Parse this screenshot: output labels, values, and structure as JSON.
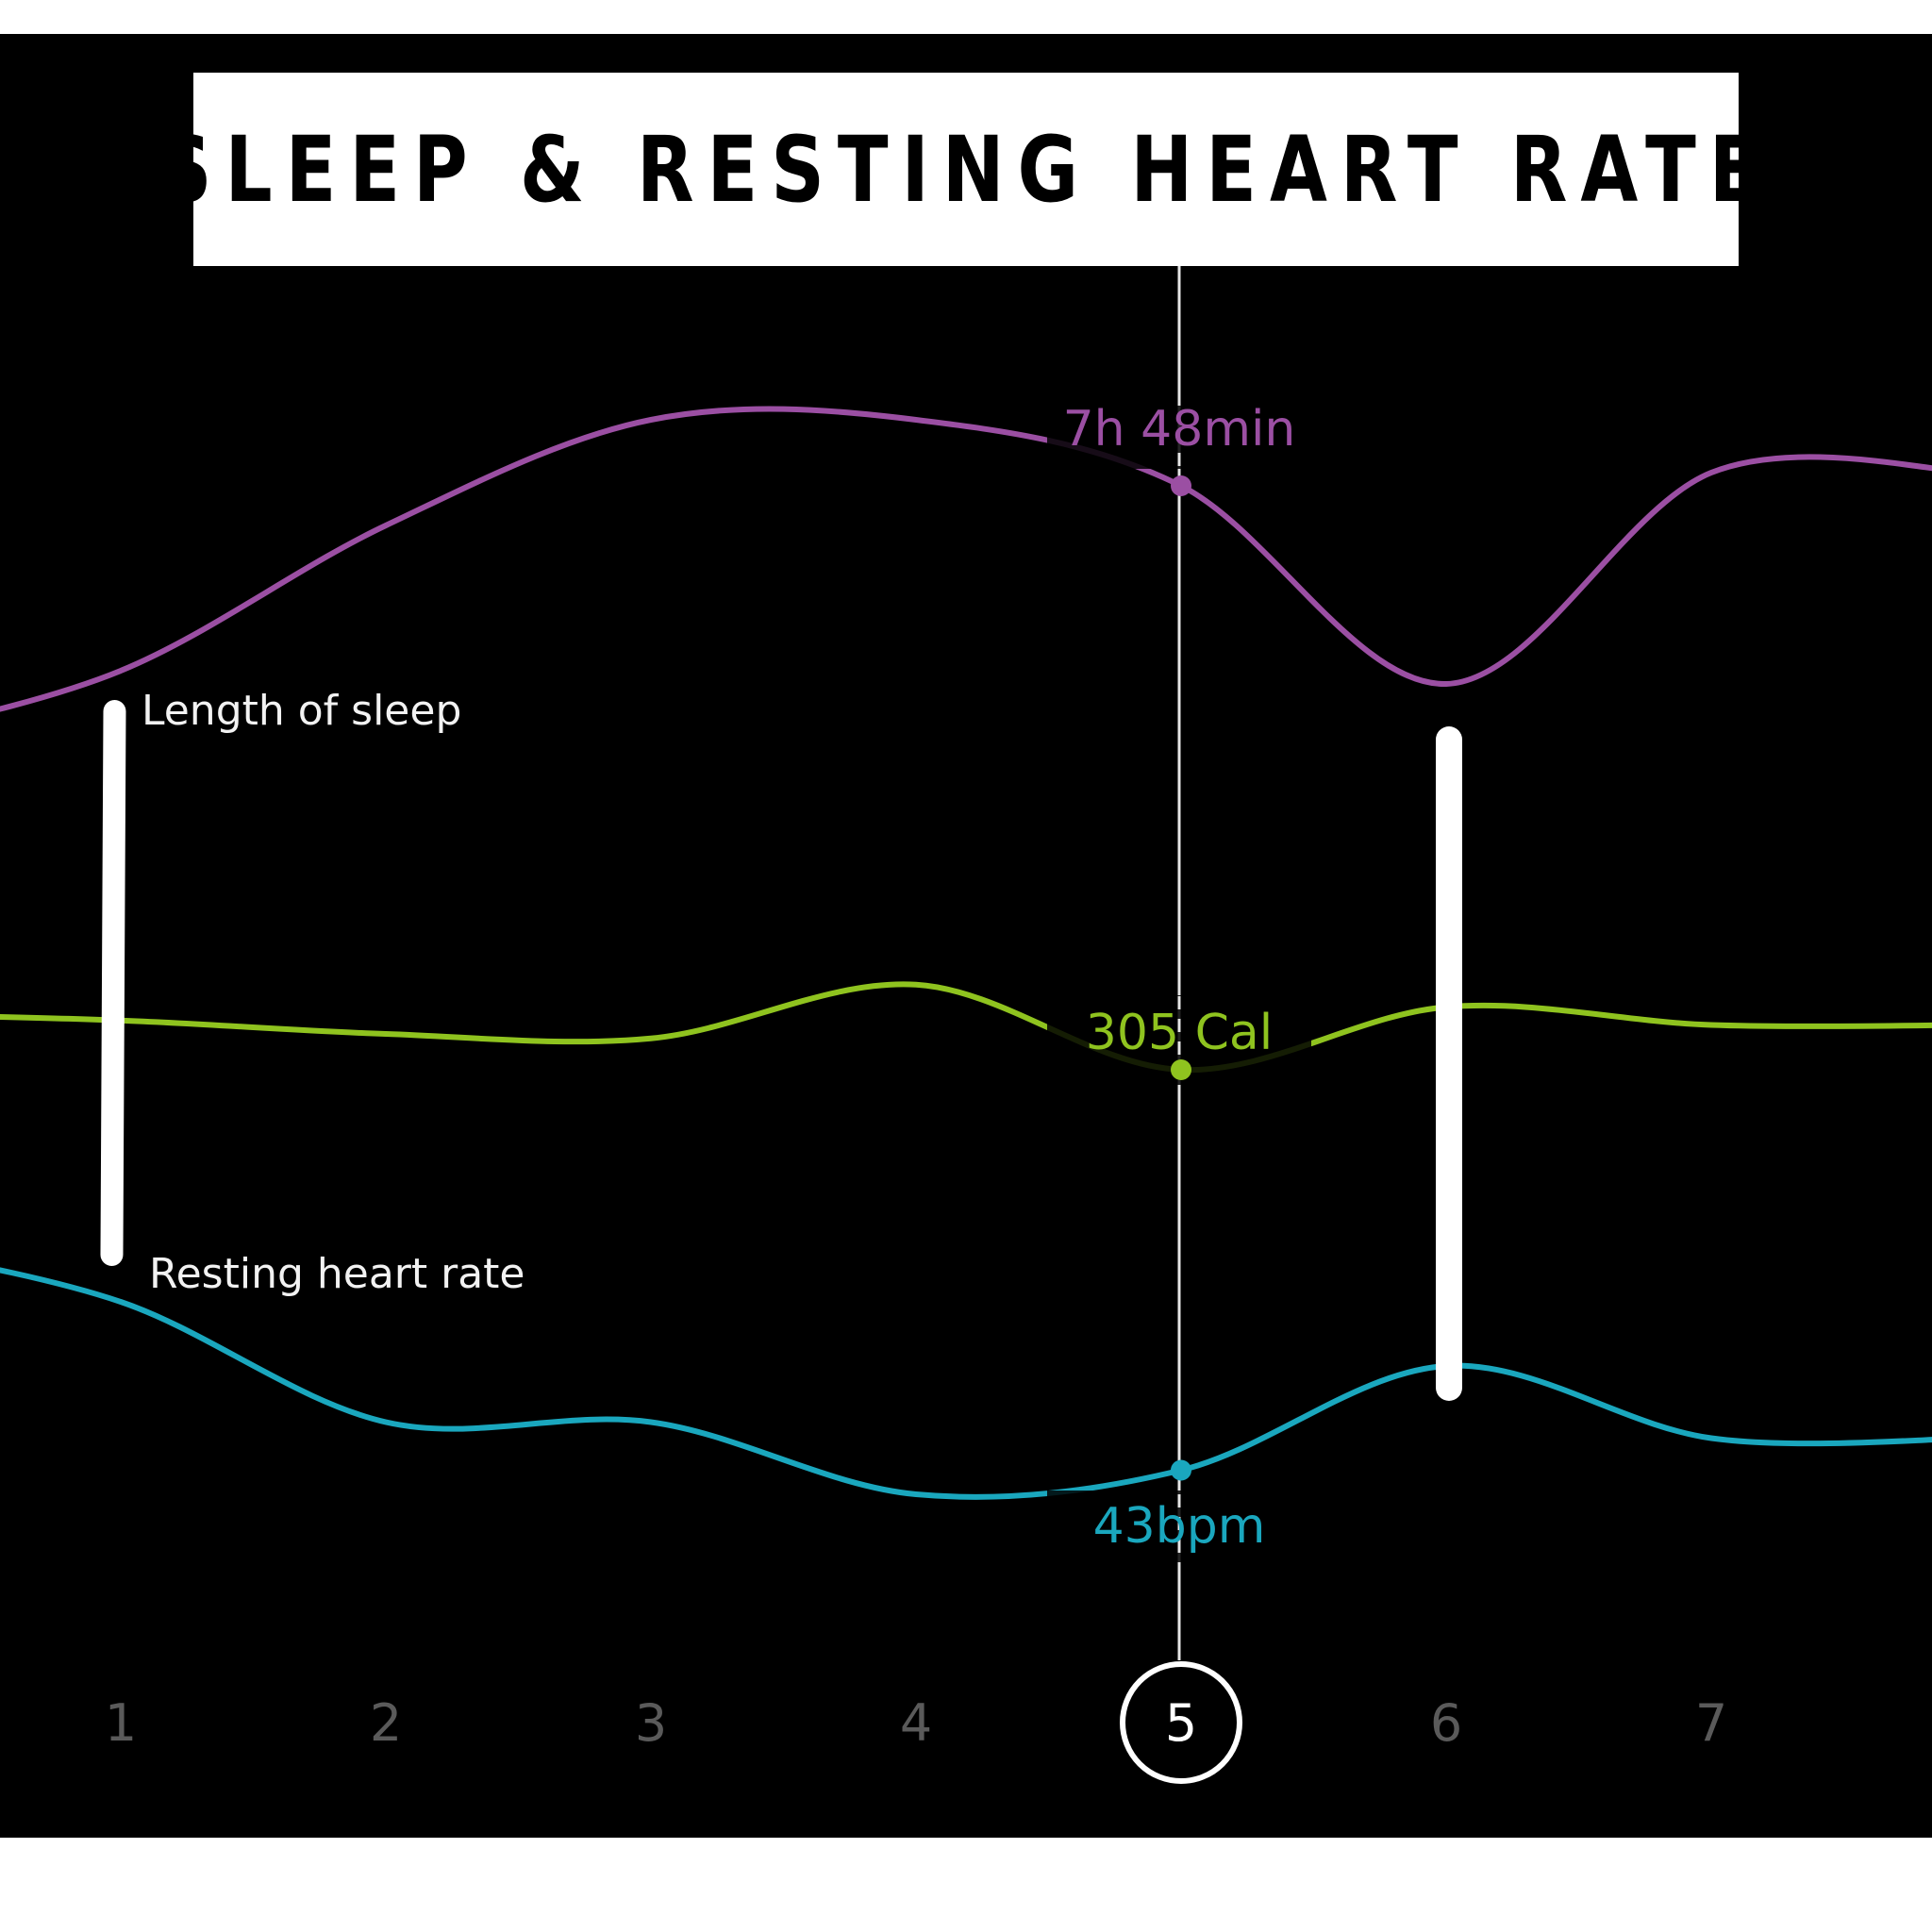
{
  "title": "SLEEP & RESTING HEART RATE",
  "colors": {
    "background": "#000000",
    "sleep": "#9b4fa3",
    "calories": "#8fc31f",
    "heart_rate": "#1aa7be",
    "cursor": "#e6e6e6"
  },
  "series_labels": {
    "sleep": "Length of sleep",
    "heart_rate": "Resting heart rate"
  },
  "selected": {
    "day": "5",
    "sleep_value": "7h 48min",
    "calories_value": "305 Cal",
    "heart_rate_value": "43bpm"
  },
  "chart_data": {
    "type": "line",
    "x": [
      1,
      2,
      3,
      4,
      5,
      6,
      7
    ],
    "tick_labels": [
      "1",
      "2",
      "3",
      "4",
      "5",
      "6",
      "7"
    ],
    "selected_index": 4,
    "series": [
      {
        "key": "sleep",
        "name": "Length of sleep",
        "color": "#9b4fa3",
        "values": [
          -0.9,
          0.2,
          1.0,
          1.0,
          0.5,
          -1.0,
          0.6
        ]
      },
      {
        "key": "calories",
        "name": "",
        "color": "#8fc31f",
        "values": [
          0.35,
          0.2,
          0.15,
          0.75,
          -0.2,
          0.5,
          0.3
        ]
      },
      {
        "key": "heart_rate",
        "name": "Resting heart rate",
        "color": "#1aa7be",
        "values": [
          1.0,
          0.25,
          0.25,
          -0.2,
          -0.05,
          0.6,
          0.15
        ]
      }
    ],
    "grid": false,
    "legend": "none"
  }
}
